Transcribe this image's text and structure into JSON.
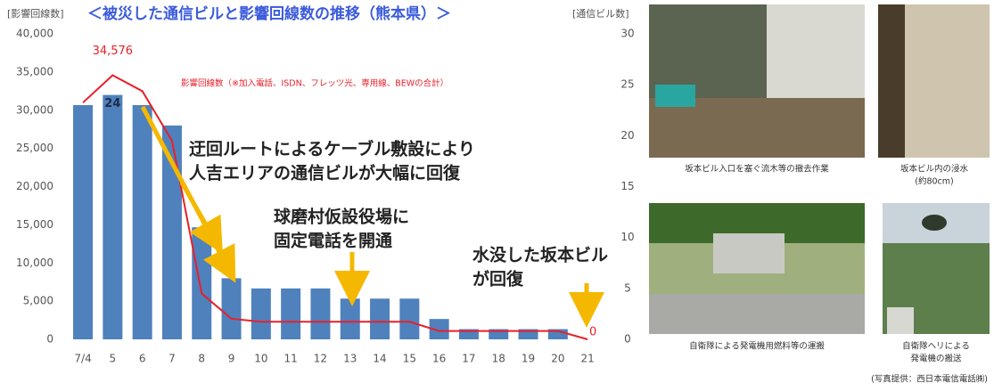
{
  "chart_data": {
    "type": "bar",
    "title": "＜被災した通信ビルと影響回線数の推移（熊本県）＞",
    "ylabel": "[影響回線数]",
    "y2label": "[通信ビル数]",
    "categories": [
      "7/4",
      "5",
      "6",
      "7",
      "8",
      "9",
      "10",
      "11",
      "12",
      "13",
      "14",
      "15",
      "16",
      "17",
      "18",
      "19",
      "20",
      "21"
    ],
    "ylim": [
      0,
      40000
    ],
    "yticks": [
      0,
      {
        "value": 5000,
        "label": "5,000"
      },
      {
        "value": 10000,
        "label": "10,000"
      },
      {
        "value": 15000,
        "label": "15,000"
      },
      {
        "value": 20000,
        "label": "20,000"
      },
      {
        "value": 25000,
        "label": "25,000"
      },
      {
        "value": 30000,
        "label": "30,000"
      },
      {
        "value": 35000,
        "label": "35,000"
      },
      {
        "value": 40000,
        "label": "40,000"
      }
    ],
    "y2lim": [
      0,
      30
    ],
    "y2ticks": [
      0,
      5,
      10,
      15,
      20,
      25,
      30
    ],
    "series": [
      {
        "type": "bar",
        "axis": "y2",
        "color": "#4f81bd",
        "values": [
          23,
          24,
          23,
          21,
          11,
          6,
          5,
          5,
          5,
          4,
          4,
          4,
          2,
          1,
          1,
          1,
          1,
          0
        ],
        "labeled": [
          1
        ]
      },
      {
        "type": "line",
        "name": "影響回線数（※加入電話、ISDN、フレッツ光、専用線、BEWの合計）",
        "color": "#e8202a",
        "values": [
          31000,
          34576,
          32500,
          26000,
          6000,
          2700,
          2300,
          2300,
          2300,
          2300,
          2300,
          2300,
          1100,
          1100,
          1100,
          1100,
          1100,
          0
        ],
        "value_labels": [
          null,
          "34,576",
          null,
          null,
          null,
          null,
          null,
          null,
          null,
          null,
          null,
          null,
          null,
          null,
          null,
          null,
          null,
          "0"
        ]
      }
    ],
    "annotations": [
      {
        "text": [
          "迂回ルートによるケーブル敷設により",
          "人吉エリアの通信ビルが大幅に回復"
        ]
      },
      {
        "text": [
          "球磨村仮設役場に",
          "固定電話を開通"
        ]
      },
      {
        "text": [
          "水没した坂本ビル",
          "が回復"
        ]
      }
    ]
  },
  "photos": {
    "captions": [
      [
        "坂本ビル入口を塞ぐ流木等の撤去作業"
      ],
      [
        "坂本ビル内の浸水",
        "(約80cm)"
      ],
      [
        "自衛隊による発電機用燃料等の運搬"
      ],
      [
        "自衛隊ヘリによる",
        "発電機の搬送"
      ]
    ],
    "credit": "(写真提供：西日本電信電話㈱)"
  }
}
